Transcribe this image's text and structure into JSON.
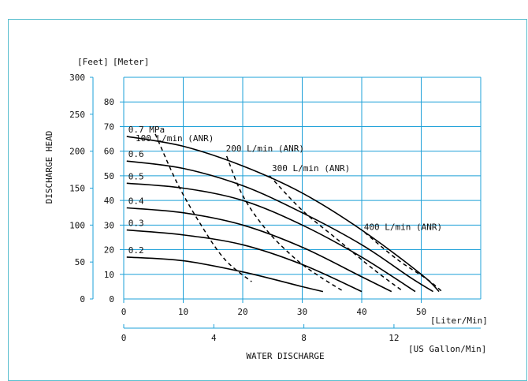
{
  "chart_data": {
    "type": "line",
    "title": "",
    "xlabel": "WATER  DISCHARGE",
    "ylabel": "DISCHARGE  HEAD",
    "x_unit_primary": "[Liter/Min]",
    "x_unit_secondary": "[US Gallon/Min]",
    "y_unit_feet": "[Feet]",
    "y_unit_meter": "[Meter]",
    "xlim": [
      0,
      60
    ],
    "ylim_meter": [
      0,
      90
    ],
    "ylim_feet": [
      0,
      300
    ],
    "x_ticks_lpm": [
      "0",
      "10",
      "20",
      "30",
      "40",
      "50"
    ],
    "x_ticks_gpm": [
      "0",
      "4",
      "8",
      "12"
    ],
    "y_ticks_meter": [
      "0",
      "10",
      "20",
      "30",
      "40",
      "50",
      "60",
      "70",
      "80"
    ],
    "y_ticks_feet": [
      "0",
      "50",
      "100",
      "150",
      "200",
      "250",
      "300"
    ],
    "pressure_series": [
      {
        "name": "0.7 MPa",
        "x": [
          0.5,
          10,
          20,
          30,
          40,
          50,
          53
        ],
        "y": [
          66,
          62,
          54,
          43,
          28,
          10,
          3
        ]
      },
      {
        "name": "0.6",
        "x": [
          0.5,
          10,
          20,
          30,
          40,
          48,
          52
        ],
        "y": [
          56,
          53,
          46,
          35,
          22,
          9,
          3
        ]
      },
      {
        "name": "0.5",
        "x": [
          0.5,
          10,
          20,
          30,
          40,
          49
        ],
        "y": [
          47,
          45,
          40,
          30,
          17,
          3
        ]
      },
      {
        "name": "0.4",
        "x": [
          0.5,
          10,
          20,
          30,
          40,
          45
        ],
        "y": [
          37,
          35,
          30,
          21,
          9,
          3
        ]
      },
      {
        "name": "0.3",
        "x": [
          0.5,
          10,
          20,
          30,
          40
        ],
        "y": [
          28,
          26,
          22,
          14,
          3
        ]
      },
      {
        "name": "0.2",
        "x": [
          0.5,
          10,
          20,
          30,
          33.5
        ],
        "y": [
          17,
          15.5,
          11,
          5,
          3
        ]
      }
    ],
    "air_consumption_series": [
      {
        "name": "100 L/min (ANR)",
        "x": [
          5.3,
          9,
          13,
          17,
          21.5
        ],
        "y": [
          67,
          47,
          30,
          16,
          7
        ]
      },
      {
        "name": "200 L/min (ANR)",
        "x": [
          17.3,
          20,
          24,
          29,
          33,
          37
        ],
        "y": [
          58,
          42,
          28,
          16,
          9,
          3
        ]
      },
      {
        "name": "300 L/min (ANR)",
        "x": [
          24.5,
          30,
          36,
          42,
          47
        ],
        "y": [
          50,
          36,
          24,
          12,
          3
        ]
      },
      {
        "name": "400 L/min (ANR)",
        "x": [
          40.5,
          46,
          51,
          53.5
        ],
        "y": [
          27,
          16,
          8,
          3
        ]
      }
    ],
    "colors": {
      "grid": "#1ea0d8",
      "curve": "#000000",
      "frame": "#5bbfcf"
    }
  }
}
